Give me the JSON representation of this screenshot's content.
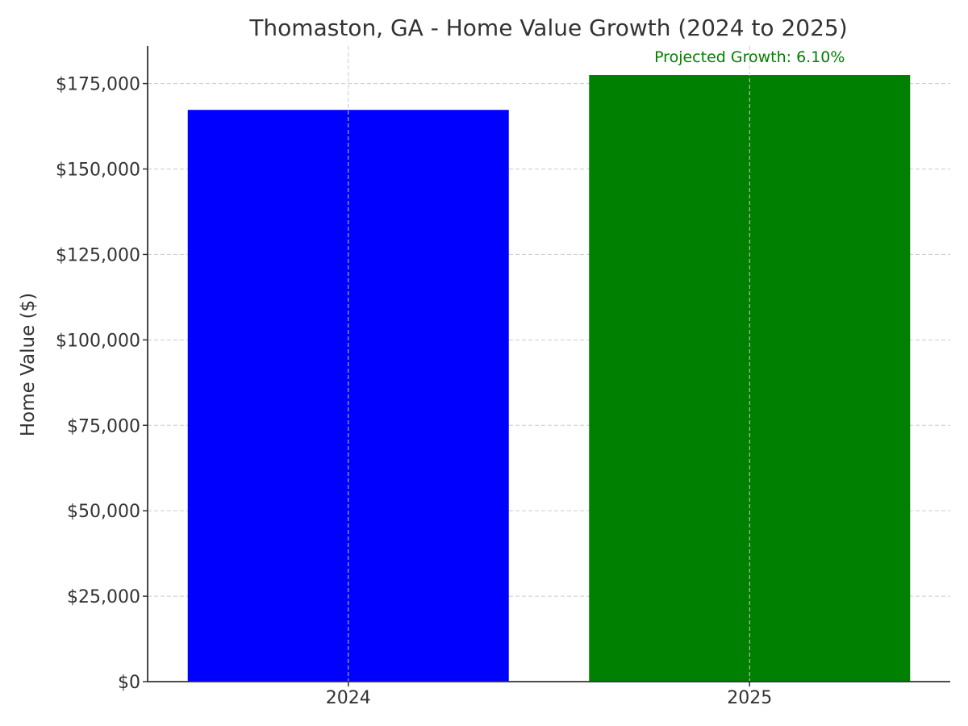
{
  "chart_data": {
    "type": "bar",
    "title": "Thomaston, GA - Home Value Growth (2024 to 2025)",
    "xlabel": "",
    "ylabel": "Home Value ($)",
    "categories": [
      "2024",
      "2025"
    ],
    "values": [
      167300,
      177500
    ],
    "colors": [
      "#0000ff",
      "#008000"
    ],
    "ylim": [
      0,
      186000
    ],
    "yticks": [
      0,
      25000,
      50000,
      75000,
      100000,
      125000,
      150000,
      175000
    ],
    "ytick_labels": [
      "$0",
      "$25,000",
      "$50,000",
      "$75,000",
      "$100,000",
      "$125,000",
      "$150,000",
      "$175,000"
    ],
    "grid": true,
    "annotation": {
      "text": "Projected Growth: 6.10%",
      "color": "#008000",
      "category": "2025"
    }
  }
}
